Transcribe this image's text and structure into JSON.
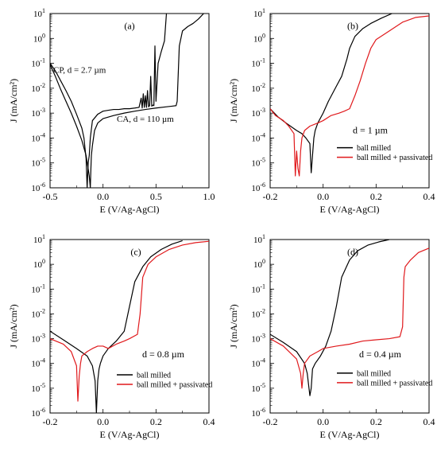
{
  "figure": {
    "colors": {
      "black": "#000000",
      "red": "#e0191c"
    },
    "charts": [
      {
        "type": "line",
        "panel_label": "(a)",
        "xlabel": "E (V/Ag-AgCl)",
        "ylabel": "J (mA/cm²)",
        "xlim": [
          -0.5,
          1.0
        ],
        "xticks": [
          -0.5,
          0.0,
          0.5,
          1.0
        ],
        "xtick_labels": [
          "-0.5",
          "0.0",
          "0.5",
          "1.0"
        ],
        "yscale": "log",
        "ylim": [
          1e-06,
          10
        ],
        "yticks": [
          -6,
          -5,
          -4,
          -3,
          -2,
          -1,
          0,
          1
        ],
        "subtitle": "",
        "annotations": [
          {
            "text": "CP, d = 2.7 µm",
            "x": -0.47,
            "y": 0.042
          },
          {
            "text": "CA, d = 110 µm",
            "x": 0.13,
            "y": 0.00045
          }
        ],
        "legend": null,
        "series": [
          {
            "name": "",
            "color": "#000000",
            "x": [
              -0.5,
              -0.45,
              -0.4,
              -0.35,
              -0.3,
              -0.25,
              -0.2,
              -0.18,
              -0.16,
              -0.15,
              -0.14,
              -0.13,
              -0.12,
              -0.1,
              -0.05,
              0.0,
              0.05,
              0.1,
              0.15,
              0.2,
              0.25,
              0.3,
              0.34,
              0.36,
              0.37,
              0.38,
              0.39,
              0.4,
              0.41,
              0.42,
              0.43,
              0.44,
              0.45,
              0.46,
              0.47,
              0.48,
              0.49,
              0.5,
              0.52,
              0.55,
              0.58,
              0.6,
              0.61
            ],
            "y": [
              0.1,
              0.05,
              0.02,
              0.008,
              0.003,
              0.0009,
              0.00025,
              0.0001,
              1.5e-05,
              1e-06,
              1e-05,
              2e-05,
              0.0001,
              0.0005,
              0.0009,
              0.0012,
              0.0013,
              0.0014,
              0.0014,
              0.0015,
              0.0015,
              0.0016,
              0.0017,
              0.004,
              0.0016,
              0.006,
              0.0017,
              0.005,
              0.0017,
              0.008,
              0.0018,
              0.002,
              0.03,
              0.0019,
              0.0021,
              0.002,
              0.5,
              0.003,
              0.1,
              0.3,
              0.8,
              12,
              14
            ]
          },
          {
            "name": "",
            "color": "#000000",
            "x": [
              -0.5,
              -0.45,
              -0.4,
              -0.35,
              -0.3,
              -0.25,
              -0.2,
              -0.16,
              -0.13,
              -0.12,
              -0.115,
              -0.11,
              -0.1,
              -0.08,
              -0.05,
              0.0,
              0.1,
              0.2,
              0.3,
              0.4,
              0.5,
              0.6,
              0.65,
              0.69,
              0.7,
              0.72,
              0.75,
              0.8,
              0.85,
              0.9,
              0.95,
              1.0
            ],
            "y": [
              0.09,
              0.03,
              0.009,
              0.003,
              0.001,
              0.0003,
              8e-05,
              2e-05,
              3e-06,
              1e-06,
              5e-06,
              2e-05,
              5e-05,
              0.0002,
              0.0004,
              0.0006,
              0.0008,
              0.001,
              0.0012,
              0.0014,
              0.0016,
              0.0018,
              0.0019,
              0.002,
              0.003,
              0.5,
              2.0,
              3.0,
              4.0,
              6.0,
              10.0,
              14.0
            ]
          }
        ]
      },
      {
        "type": "line",
        "panel_label": "(b)",
        "xlabel": "E (V/Ag-AgCl)",
        "ylabel": "J (mA/cm²)",
        "xlim": [
          -0.2,
          0.4
        ],
        "xticks": [
          -0.2,
          0.0,
          0.2,
          0.4
        ],
        "xtick_labels": [
          "-0.2",
          "0.0",
          "0.2",
          "0.4"
        ],
        "yscale": "log",
        "ylim": [
          1e-06,
          10
        ],
        "yticks": [
          -6,
          -5,
          -4,
          -3,
          -2,
          -1,
          0,
          1
        ],
        "subtitle": "d = 1 µm",
        "annotations": [],
        "legend": {
          "entries": [
            "ball milled",
            "ball milled + passivated"
          ]
        },
        "series": [
          {
            "name": "ball milled",
            "color": "#000000",
            "x": [
              -0.2,
              -0.17,
              -0.14,
              -0.1,
              -0.08,
              -0.065,
              -0.05,
              -0.045,
              -0.04,
              -0.035,
              -0.03,
              -0.02,
              0.0,
              0.02,
              0.05,
              0.07,
              0.09,
              0.1,
              0.12,
              0.15,
              0.18,
              0.22,
              0.26
            ],
            "y": [
              0.0015,
              0.0007,
              0.0004,
              0.0002,
              0.00015,
              0.0001,
              6e-05,
              4e-06,
              2e-05,
              0.0001,
              0.0002,
              0.0004,
              0.001,
              0.003,
              0.012,
              0.03,
              0.15,
              0.4,
              1.2,
              2.5,
              4.0,
              6.5,
              10.0
            ]
          },
          {
            "name": "ball milled + passivated",
            "color": "#e0191c",
            "x": [
              -0.2,
              -0.18,
              -0.15,
              -0.13,
              -0.11,
              -0.105,
              -0.1,
              -0.095,
              -0.09,
              -0.085,
              -0.08,
              -0.07,
              -0.05,
              -0.02,
              0.0,
              0.03,
              0.06,
              0.08,
              0.1,
              0.12,
              0.14,
              0.16,
              0.18,
              0.2,
              0.25,
              0.3,
              0.35,
              0.4
            ],
            "y": [
              0.0015,
              0.0008,
              0.0005,
              0.0003,
              0.00015,
              3e-06,
              3e-05,
              6e-06,
              3e-06,
              3e-05,
              0.0001,
              0.0002,
              0.0003,
              0.0004,
              0.0005,
              0.0008,
              0.001,
              0.0012,
              0.0015,
              0.005,
              0.02,
              0.1,
              0.4,
              0.9,
              2.0,
              4.5,
              7.0,
              8.0
            ]
          }
        ]
      },
      {
        "type": "line",
        "panel_label": "(c)",
        "xlabel": "E (V/Ag-AgCl)",
        "ylabel": "J (mA/cm²)",
        "xlim": [
          -0.2,
          0.4
        ],
        "xticks": [
          -0.2,
          0.0,
          0.2,
          0.4
        ],
        "xtick_labels": [
          "-0.2",
          "0.0",
          "0.2",
          "0.4"
        ],
        "yscale": "log",
        "ylim": [
          1e-06,
          10
        ],
        "yticks": [
          -6,
          -5,
          -4,
          -3,
          -2,
          -1,
          0,
          1
        ],
        "subtitle": "d = 0.8 µm",
        "annotations": [],
        "legend": {
          "entries": [
            "ball milled",
            "ball milled + passivated"
          ]
        },
        "series": [
          {
            "name": "ball milled",
            "color": "#000000",
            "x": [
              -0.2,
              -0.15,
              -0.1,
              -0.06,
              -0.04,
              -0.03,
              -0.025,
              -0.02,
              -0.015,
              -0.01,
              0.0,
              0.02,
              0.05,
              0.08,
              0.1,
              0.12,
              0.15,
              0.18,
              0.22,
              0.26,
              0.3
            ],
            "y": [
              0.002,
              0.0009,
              0.0004,
              0.0002,
              8e-05,
              2e-05,
              1e-06,
              2e-05,
              6e-05,
              0.0001,
              0.0002,
              0.0004,
              0.0008,
              0.002,
              0.02,
              0.2,
              0.8,
              2.0,
              4.0,
              6.5,
              9.0
            ]
          },
          {
            "name": "ball milled + passivated",
            "color": "#e0191c",
            "x": [
              -0.2,
              -0.15,
              -0.12,
              -0.1,
              -0.095,
              -0.09,
              -0.085,
              -0.08,
              -0.06,
              -0.04,
              -0.02,
              0.0,
              0.02,
              0.05,
              0.08,
              0.1,
              0.13,
              0.14,
              0.15,
              0.17,
              0.2,
              0.25,
              0.3,
              0.35,
              0.4
            ],
            "y": [
              0.001,
              0.0006,
              0.0003,
              8e-05,
              3e-06,
              3e-05,
              0.0001,
              0.0002,
              0.0003,
              0.0004,
              0.0005,
              0.0005,
              0.0004,
              0.0006,
              0.0008,
              0.001,
              0.0015,
              0.01,
              0.3,
              1.0,
              2.0,
              4.0,
              6.0,
              7.5,
              8.5
            ]
          }
        ]
      },
      {
        "type": "line",
        "panel_label": "(d)",
        "xlabel": "E (V/Ag-AgCl)",
        "ylabel": "J (mA/cm²)",
        "xlim": [
          -0.2,
          0.4
        ],
        "xticks": [
          -0.2,
          0.0,
          0.2,
          0.4
        ],
        "xtick_labels": [
          "-0.2",
          "0.0",
          "0.2",
          "0.4"
        ],
        "yscale": "log",
        "ylim": [
          1e-06,
          10
        ],
        "yticks": [
          -6,
          -5,
          -4,
          -3,
          -2,
          -1,
          0,
          1
        ],
        "subtitle": "d = 0.4 µm",
        "annotations": [],
        "legend": {
          "entries": [
            "ball milled",
            "ball milled + passivated"
          ]
        },
        "series": [
          {
            "name": "ball milled",
            "color": "#000000",
            "x": [
              -0.2,
              -0.15,
              -0.1,
              -0.07,
              -0.06,
              -0.05,
              -0.045,
              -0.04,
              -0.03,
              -0.01,
              0.01,
              0.03,
              0.05,
              0.07,
              0.1,
              0.13,
              0.17,
              0.21,
              0.25
            ],
            "y": [
              0.0015,
              0.0007,
              0.0003,
              0.0001,
              4e-05,
              5e-06,
              1e-05,
              6e-05,
              0.0001,
              0.0002,
              0.0005,
              0.002,
              0.02,
              0.3,
              1.5,
              3.5,
              6.0,
              8.0,
              10.0
            ]
          },
          {
            "name": "ball milled + passivated",
            "color": "#e0191c",
            "x": [
              -0.2,
              -0.15,
              -0.1,
              -0.085,
              -0.08,
              -0.075,
              -0.07,
              -0.05,
              -0.02,
              0.0,
              0.05,
              0.1,
              0.15,
              0.2,
              0.25,
              0.29,
              0.3,
              0.305,
              0.31,
              0.33,
              0.36,
              0.4
            ],
            "y": [
              0.001,
              0.0005,
              0.00015,
              4e-05,
              1e-05,
              4e-05,
              0.0001,
              0.0002,
              0.0003,
              0.0004,
              0.0005,
              0.0006,
              0.0008,
              0.0009,
              0.001,
              0.0012,
              0.003,
              0.3,
              0.8,
              1.5,
              3.0,
              4.5
            ]
          }
        ]
      }
    ]
  }
}
